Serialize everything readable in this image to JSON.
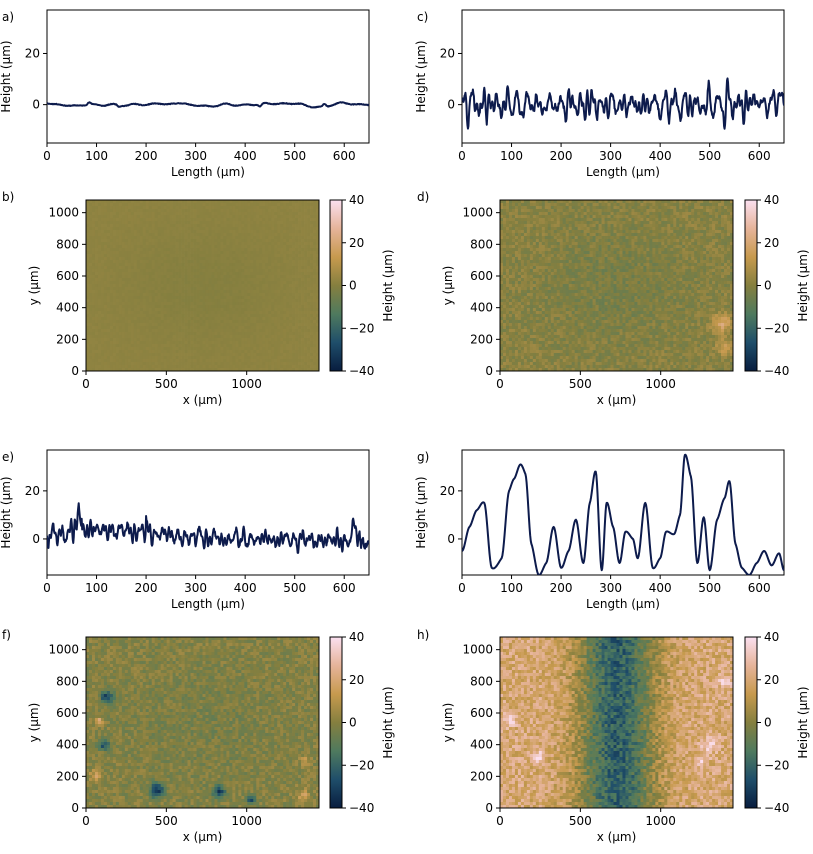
{
  "colors": {
    "line": "#0d1b4c",
    "colormap": [
      "#081d3f",
      "#1f4e6a",
      "#4f7a5e",
      "#857f3f",
      "#c79a4e",
      "#e6b49a",
      "#fbe0f0"
    ]
  },
  "chart_data": [
    {
      "panel": "a)",
      "type": "line",
      "xlabel": "Length (µm)",
      "ylabel": "Height (µm)",
      "xlim": [
        0,
        650
      ],
      "ylim": [
        -15,
        37
      ],
      "xticks": [
        0,
        100,
        200,
        300,
        400,
        500,
        600
      ],
      "yticks": [
        0,
        20
      ],
      "profile": {
        "amplitude": 0.4,
        "spikes": [
          [
            85,
            0.8
          ],
          [
            145,
            -0.6
          ],
          [
            430,
            -1.0
          ],
          [
            560,
            1.0
          ]
        ],
        "seed": 11,
        "freq": 1.0
      }
    },
    {
      "panel": "b)",
      "type": "heatmap",
      "xlabel": "x (µm)",
      "ylabel": "y (µm)",
      "xlim": [
        0,
        1450
      ],
      "ylim": [
        0,
        1080
      ],
      "xticks": [
        0,
        500,
        1000
      ],
      "yticks": [
        0,
        200,
        400,
        600,
        800,
        1000
      ],
      "colorbar": {
        "label": "Height (µm)",
        "range": [
          -40,
          40
        ],
        "ticks": [
          -40,
          -20,
          0,
          20,
          40
        ]
      },
      "surface": {
        "base": 2,
        "center_dip": 2,
        "noise": 0.6,
        "seed": 5,
        "features": []
      }
    },
    {
      "panel": "c)",
      "type": "line",
      "xlabel": "Length (µm)",
      "ylabel": "Height (µm)",
      "xlim": [
        0,
        650
      ],
      "ylim": [
        -15,
        37
      ],
      "xticks": [
        0,
        100,
        200,
        300,
        400,
        500,
        600
      ],
      "yticks": [
        0,
        20
      ],
      "profile": {
        "amplitude": 2.8,
        "spikes": [
          [
            640,
            6.0
          ],
          [
            595,
            4.0
          ]
        ],
        "seed": 23,
        "freq": 4.5
      }
    },
    {
      "panel": "d)",
      "type": "heatmap",
      "xlabel": "x (µm)",
      "ylabel": "y (µm)",
      "xlim": [
        0,
        1450
      ],
      "ylim": [
        0,
        1080
      ],
      "xticks": [
        0,
        500,
        1000
      ],
      "yticks": [
        0,
        200,
        400,
        600,
        800,
        1000
      ],
      "colorbar": {
        "label": "Height (µm)",
        "range": [
          -40,
          40
        ],
        "ticks": [
          -40,
          -20,
          0,
          20,
          40
        ]
      },
      "surface": {
        "base": 1,
        "center_dip": 4,
        "noise": 5,
        "seed": 9,
        "features": [
          [
            1380,
            300,
            60,
            18
          ],
          [
            1400,
            150,
            50,
            15
          ]
        ]
      }
    },
    {
      "panel": "e)",
      "type": "line",
      "xlabel": "Length (µm)",
      "ylabel": "Height (µm)",
      "xlim": [
        0,
        650
      ],
      "ylim": [
        -15,
        37
      ],
      "xticks": [
        0,
        100,
        200,
        300,
        400,
        500,
        600
      ],
      "yticks": [
        0,
        20
      ],
      "profile": {
        "amplitude": 2.5,
        "trend": [
          [
            0,
            1
          ],
          [
            70,
            4
          ],
          [
            200,
            3
          ],
          [
            300,
            0
          ],
          [
            450,
            0
          ],
          [
            650,
            -1
          ]
        ],
        "spikes": [
          [
            65,
            8
          ],
          [
            310,
            4
          ],
          [
            620,
            8
          ]
        ],
        "seed": 37,
        "freq": 5
      }
    },
    {
      "panel": "f)",
      "type": "heatmap",
      "xlabel": "x (µm)",
      "ylabel": "y (µm)",
      "xlim": [
        0,
        1450
      ],
      "ylim": [
        0,
        1080
      ],
      "xticks": [
        0,
        500,
        1000
      ],
      "yticks": [
        0,
        200,
        400,
        600,
        800,
        1000
      ],
      "colorbar": {
        "label": "Height (µm)",
        "range": [
          -40,
          40
        ],
        "ticks": [
          -40,
          -20,
          0,
          20,
          40
        ]
      },
      "surface": {
        "base": 0,
        "center_dip": 3,
        "noise": 6,
        "seed": 17,
        "features": [
          [
            130,
            700,
            40,
            -30
          ],
          [
            110,
            400,
            35,
            -25
          ],
          [
            440,
            110,
            45,
            -35
          ],
          [
            830,
            100,
            40,
            -30
          ],
          [
            1030,
            50,
            30,
            -25
          ],
          [
            80,
            550,
            25,
            20
          ],
          [
            60,
            200,
            40,
            15
          ],
          [
            1350,
            80,
            40,
            15
          ],
          [
            1360,
            300,
            30,
            12
          ]
        ]
      }
    },
    {
      "panel": "g)",
      "type": "line",
      "xlabel": "Length (µm)",
      "ylabel": "Height (µm)",
      "xlim": [
        0,
        650
      ],
      "ylim": [
        -15,
        37
      ],
      "xticks": [
        0,
        100,
        200,
        300,
        400,
        500,
        600
      ],
      "yticks": [
        0,
        20
      ],
      "peaks_x": [
        0,
        15,
        30,
        45,
        60,
        80,
        95,
        105,
        118,
        128,
        140,
        155,
        170,
        185,
        200,
        215,
        230,
        245,
        258,
        270,
        282,
        292,
        305,
        318,
        330,
        345,
        355,
        370,
        385,
        400,
        412,
        428,
        440,
        450,
        462,
        475,
        488,
        500,
        515,
        530,
        540,
        552,
        565,
        580,
        595,
        610,
        625,
        640,
        650
      ],
      "peaks_y": [
        -5,
        5,
        12,
        15,
        -12,
        -8,
        20,
        25,
        31,
        27,
        -2,
        -15,
        -10,
        5,
        -12,
        -5,
        8,
        -10,
        15,
        28,
        -13,
        15,
        5,
        -10,
        3,
        0,
        -8,
        15,
        -12,
        -8,
        3,
        2,
        10,
        35,
        26,
        -10,
        9,
        -13,
        8,
        17,
        24,
        -2,
        -12,
        -15,
        -10,
        -5,
        -11,
        -6,
        -13
      ]
    },
    {
      "panel": "h)",
      "type": "heatmap",
      "xlabel": "x (µm)",
      "ylabel": "y (µm)",
      "xlim": [
        0,
        1450
      ],
      "ylim": [
        0,
        1080
      ],
      "xticks": [
        0,
        500,
        1000
      ],
      "yticks": [
        0,
        200,
        400,
        600,
        800,
        1000
      ],
      "colorbar": {
        "label": "Height (µm)",
        "range": [
          -40,
          40
        ],
        "ticks": [
          -40,
          -20,
          0,
          20,
          40
        ]
      },
      "surface": {
        "base": 0,
        "band": {
          "center": 730,
          "width": 300,
          "depth": 42,
          "edge_height": 20
        },
        "noise": 9,
        "seed": 29,
        "features": [
          [
            240,
            320,
            35,
            25
          ],
          [
            60,
            560,
            40,
            20
          ],
          [
            1300,
            400,
            50,
            15
          ],
          [
            1400,
            800,
            40,
            15
          ],
          [
            1250,
            300,
            40,
            15
          ]
        ]
      }
    }
  ]
}
